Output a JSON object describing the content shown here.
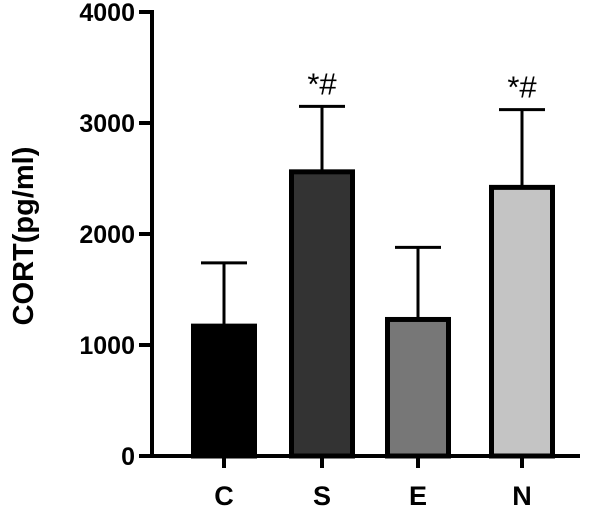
{
  "chart_data": {
    "type": "bar",
    "ylabel": "CORT(pg/ml)",
    "xlabel": "",
    "ylim": [
      0,
      4000
    ],
    "yticks": [
      "0",
      "1000",
      "2000",
      "3000",
      "4000"
    ],
    "categories": [
      "C",
      "S",
      "E",
      "N"
    ],
    "values": [
      1170,
      2560,
      1230,
      2420
    ],
    "error_upper": [
      1740,
      3150,
      1880,
      3120
    ],
    "annotations": [
      "",
      "*#",
      "",
      "*#"
    ],
    "colors": [
      "#000000",
      "#333333",
      "#777777",
      "#c4c4c4"
    ],
    "grid": false,
    "legend": "none"
  }
}
